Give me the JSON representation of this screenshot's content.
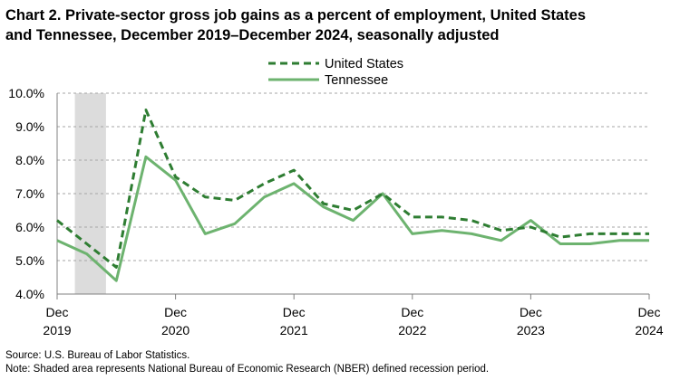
{
  "chart_data": {
    "type": "line",
    "title_line1": "Chart 2. Private-sector gross job gains as a percent of employment, United States",
    "title_line2": "and Tennessee, December 2019–December 2024, seasonally adjusted",
    "x": [
      "Dec 2019",
      "Mar 2020",
      "Jun 2020",
      "Sep 2020",
      "Dec 2020",
      "Mar 2021",
      "Jun 2021",
      "Sep 2021",
      "Dec 2021",
      "Mar 2022",
      "Jun 2022",
      "Sep 2022",
      "Dec 2022",
      "Mar 2023",
      "Jun 2023",
      "Sep 2023",
      "Dec 2023",
      "Mar 2024",
      "Jun 2024",
      "Sep 2024",
      "Dec 2024"
    ],
    "x_tick_labels": [
      {
        "month": "Dec",
        "year": "2019",
        "index": 0
      },
      {
        "month": "Dec",
        "year": "2020",
        "index": 4
      },
      {
        "month": "Dec",
        "year": "2021",
        "index": 8
      },
      {
        "month": "Dec",
        "year": "2022",
        "index": 12
      },
      {
        "month": "Dec",
        "year": "2023",
        "index": 16
      },
      {
        "month": "Dec",
        "year": "2024",
        "index": 20
      }
    ],
    "y_tick_labels": [
      "10.0%",
      "9.0%",
      "8.0%",
      "7.0%",
      "6.0%",
      "5.0%",
      "4.0%"
    ],
    "ylim": [
      4.0,
      10.0
    ],
    "y_ticks": [
      4.0,
      5.0,
      6.0,
      7.0,
      8.0,
      9.0,
      10.0
    ],
    "grid": "horizontal dashed",
    "legend_position": "top-center",
    "recession_shading": {
      "from": "Mar 2020",
      "to": "Apr 2020",
      "from_index": 0.6,
      "to_index": 1.65
    },
    "series": [
      {
        "name": "United States",
        "style": "dashed",
        "color": "#2e7d32",
        "values": [
          6.2,
          5.5,
          4.8,
          9.5,
          7.5,
          6.9,
          6.8,
          7.3,
          7.7,
          6.7,
          6.5,
          7.0,
          6.3,
          6.3,
          6.2,
          5.9,
          6.0,
          5.7,
          5.8,
          5.8,
          5.8
        ]
      },
      {
        "name": "Tennessee",
        "style": "solid",
        "color": "#6db36f",
        "values": [
          5.6,
          5.2,
          4.4,
          8.1,
          7.4,
          5.8,
          6.1,
          6.9,
          7.3,
          6.6,
          6.2,
          7.0,
          5.8,
          5.9,
          5.8,
          5.6,
          6.2,
          5.5,
          5.5,
          5.6,
          5.6
        ]
      }
    ]
  },
  "footnotes": {
    "source": "Source: U.S. Bureau of Labor Statistics.",
    "note": "Note: Shaded area represents National Bureau of Economic Research (NBER) defined recession period."
  }
}
